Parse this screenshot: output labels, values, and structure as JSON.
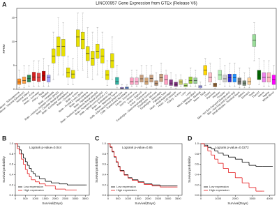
{
  "panels": [
    "A",
    "B",
    "C",
    "D"
  ],
  "chart_data": [
    {
      "type": "box",
      "title": "LINC00957 Gene Expression from GTEx (Release V6)",
      "y_label": "RPKM",
      "ylim": [
        0,
        17
      ],
      "yticks": [
        0,
        5,
        10,
        15
      ],
      "categories": [
        "Adipose - Subcutaneous",
        "Adipose - Visceral (Omentum)",
        "Adrenal Gland",
        "Artery - Aorta",
        "Artery - Coronary",
        "Artery - Tibial",
        "Bladder",
        "Brain - Amygdala",
        "Brain - Anterior cingulate cortex (BA24)",
        "Brain - Caudate (basal ganglia)",
        "Brain - Cerebellar Hemisphere",
        "Brain - Cerebellum",
        "Brain - Cortex",
        "Brain - Frontal Cortex (BA9)",
        "Brain - Hippocampus",
        "Brain - Hypothalamus",
        "Brain - Nucleus accumbens (basal ganglia)",
        "Brain - Putamen (basal ganglia)",
        "Brain - Spinal cord (cervical c-1)",
        "Brain - Substantia nigra",
        "Breast - Mammary Tissue",
        "Cells - EBV-transformed lymphocytes",
        "Cells - Transformed fibroblasts",
        "Cervix - Ectocervix",
        "Cervix - Endocervix",
        "Colon - Sigmoid",
        "Colon - Transverse",
        "Esophagus - Gastroesophageal Junction",
        "Esophagus - Mucosa",
        "Esophagus - Muscularis",
        "Fallopian Tube",
        "Heart - Atrial Appendage",
        "Heart - Left Ventricle",
        "Kidney - Cortex",
        "Liver",
        "Lung",
        "Minor Salivary Gland",
        "Muscle - Skeletal",
        "Nerve - Tibial",
        "Ovary",
        "Pancreas",
        "Pituitary",
        "Prostate",
        "Skin - Not Sun Exposed (Suprapubic)",
        "Skin - Sun Exposed (Lower leg)",
        "Small Intestine - Terminal Ileum",
        "Spleen",
        "Stomach",
        "Testis",
        "Thyroid",
        "Uterus",
        "Vagina",
        "Whole Blood"
      ],
      "colors": [
        "#ff8c1a",
        "#ff9f40",
        "#2e8b57",
        "#d62020",
        "#e04848",
        "#c00000",
        "#a0a0ff",
        "#e8e000",
        "#e8e000",
        "#e8e000",
        "#e8e000",
        "#e8e000",
        "#e8e000",
        "#e8e000",
        "#e8e000",
        "#e8e000",
        "#e8e000",
        "#e8e000",
        "#e8e000",
        "#e8e000",
        "#33b5a5",
        "#9370db",
        "#6495ed",
        "#ff9fc0",
        "#ffb0d0",
        "#c8a080",
        "#d2a679",
        "#c8a080",
        "#b89070",
        "#c8a080",
        "#ff9fc0",
        "#8b3a8b",
        "#7a2a7a",
        "#cccc66",
        "#aadd66",
        "#99cc33",
        "#99cc99",
        "#aaaaff",
        "#ffd700",
        "#ffc0cb",
        "#996633",
        "#b4eeb4",
        "#d0d0d0",
        "#3333cc",
        "#1e90ff",
        "#777777",
        "#778b78",
        "#ffd39b",
        "#99dd99",
        "#006400",
        "#ee82ee",
        "#ffb6c1",
        "#ff00ff"
      ],
      "whisker_low": [
        0.3,
        0.3,
        0.5,
        0.5,
        0.5,
        0.5,
        0.5,
        2,
        3,
        3,
        1,
        1,
        4,
        4,
        2.5,
        2,
        3,
        2.5,
        0.8,
        2,
        0.3,
        0,
        0,
        0.5,
        0.5,
        0.5,
        0.3,
        0.5,
        0.2,
        0.5,
        0.5,
        0.3,
        0.2,
        0.5,
        0.2,
        0.5,
        0.5,
        0.1,
        0.8,
        1,
        0.2,
        1,
        0.5,
        0.5,
        0.5,
        0.3,
        0.3,
        0.3,
        6,
        1,
        0.5,
        0.5,
        0.1
      ],
      "q1": [
        1,
        1.2,
        1.5,
        1.8,
        1.6,
        1.8,
        1.5,
        5.5,
        7,
        7,
        2.5,
        2.3,
        9,
        8.5,
        6,
        5,
        6.5,
        5.5,
        2,
        4.5,
        1,
        0.1,
        0.1,
        1,
        1,
        1.5,
        1,
        1.5,
        0.8,
        1.6,
        1,
        0.8,
        0.6,
        1,
        0.5,
        1.2,
        1.2,
        0.3,
        3,
        1.5,
        0.5,
        2,
        1.5,
        1.5,
        1.5,
        1,
        0.8,
        1,
        9,
        2,
        1.5,
        1.5,
        1
      ],
      "median": [
        1.5,
        1.8,
        2.3,
        2.6,
        2.5,
        2.8,
        2.5,
        7,
        9,
        9,
        3.5,
        3.2,
        11,
        10.5,
        7.5,
        6.5,
        8,
        7,
        3,
        6,
        1.6,
        0.2,
        0.3,
        1.6,
        1.6,
        2.2,
        1.6,
        2.3,
        1.2,
        2.4,
        2,
        1.3,
        1,
        1.5,
        0.8,
        1.8,
        1.8,
        0.5,
        4,
        2.5,
        0.9,
        3,
        2.2,
        2.4,
        2.4,
        1.6,
        1.3,
        1.6,
        10.3,
        3,
        2.5,
        2.5,
        2
      ],
      "q3": [
        2.2,
        2.6,
        3,
        3.6,
        3.4,
        3.8,
        3,
        8.5,
        11,
        10.5,
        4.5,
        4,
        12.5,
        12,
        9,
        8,
        9.5,
        8.5,
        4,
        7.5,
        2.5,
        0.4,
        0.5,
        2.4,
        2.4,
        3,
        2.4,
        3,
        1.8,
        3.2,
        3,
        2,
        1.5,
        2,
        1.2,
        2.6,
        2.4,
        0.8,
        5,
        3.5,
        1.3,
        4,
        3,
        3.2,
        3.2,
        2.4,
        1.8,
        2.4,
        11.5,
        4,
        3.5,
        3.5,
        3
      ],
      "whisker_high": [
        4,
        5,
        5,
        6,
        6,
        6.5,
        5,
        12,
        15,
        14,
        7,
        6.5,
        16,
        16,
        13,
        12,
        13,
        12,
        6,
        11,
        5,
        1,
        1,
        4,
        4,
        5,
        5,
        5,
        3.5,
        5.5,
        4,
        3.5,
        3,
        3,
        2,
        4.5,
        4,
        1.5,
        6.5,
        5.5,
        2.5,
        6.5,
        5,
        5.5,
        5.5,
        4.5,
        3.5,
        4.5,
        14,
        6.5,
        6,
        6,
        5
      ]
    },
    {
      "type": "line",
      "title": "Logrank p-value=0.044",
      "x_label": "Survival(Days)",
      "y_label": "Survival probability",
      "xlim": [
        0,
        3700
      ],
      "xticks": [
        0,
        500,
        1000,
        1500,
        2000,
        2500,
        3000,
        3500
      ],
      "ylim": [
        0,
        1
      ],
      "yticks": [
        {
          "value": 0,
          "label": "0.0"
        },
        0.2,
        0.4,
        0.6,
        0.8,
        {
          "value": 1,
          "label": "1.0"
        }
      ],
      "series": [
        {
          "name": "Low expression",
          "color": "#000000",
          "x": [
            0,
            100,
            200,
            300,
            400,
            500,
            600,
            700,
            800,
            900,
            1000,
            1200,
            1500,
            1800,
            2200,
            2600,
            3000,
            3500
          ],
          "values": [
            1,
            0.95,
            0.88,
            0.8,
            0.72,
            0.65,
            0.58,
            0.52,
            0.46,
            0.42,
            0.37,
            0.32,
            0.27,
            0.24,
            0.22,
            0.2,
            0.2,
            0.2
          ]
        },
        {
          "name": "High expression",
          "color": "#e41a1c",
          "x": [
            0,
            100,
            200,
            300,
            400,
            500,
            600,
            700,
            800,
            1000,
            1200,
            1500,
            2000,
            2500,
            3000
          ],
          "values": [
            1,
            0.9,
            0.8,
            0.7,
            0.6,
            0.5,
            0.42,
            0.36,
            0.3,
            0.26,
            0.22,
            0.18,
            0.12,
            0.1,
            0.1
          ]
        }
      ]
    },
    {
      "type": "line",
      "title": "Logrank p-value=0.85",
      "x_label": "Survival(Days)",
      "y_label": "Survival probability",
      "xlim": [
        0,
        3700
      ],
      "xticks": [
        0,
        500,
        1000,
        1500,
        2000,
        2500,
        3000,
        3500
      ],
      "ylim": [
        0,
        1
      ],
      "yticks": [
        {
          "value": 0,
          "label": "0.0"
        },
        0.2,
        0.4,
        0.6,
        0.8,
        {
          "value": 1,
          "label": "1.0"
        }
      ],
      "series": [
        {
          "name": "Low expression",
          "color": "#000000",
          "x": [
            0,
            100,
            200,
            300,
            400,
            500,
            600,
            800,
            1000,
            1200,
            1500,
            1800,
            2200,
            2600,
            3000,
            3400
          ],
          "values": [
            1,
            0.93,
            0.84,
            0.74,
            0.64,
            0.56,
            0.48,
            0.4,
            0.34,
            0.3,
            0.26,
            0.22,
            0.2,
            0.18,
            0.18,
            0.18
          ]
        },
        {
          "name": "High expression",
          "color": "#e41a1c",
          "x": [
            0,
            100,
            200,
            300,
            400,
            500,
            600,
            800,
            1000,
            1200,
            1500,
            1800,
            2200,
            2600,
            3000,
            3400
          ],
          "values": [
            1,
            0.94,
            0.85,
            0.75,
            0.65,
            0.55,
            0.47,
            0.39,
            0.33,
            0.29,
            0.25,
            0.21,
            0.18,
            0.16,
            0.16,
            0.16
          ]
        }
      ]
    },
    {
      "type": "line",
      "title": "Logrank p-value=0.0272",
      "x_label": "Survival(Days)",
      "y_label": "Survival probability",
      "xlim": [
        0,
        4300
      ],
      "xticks": [
        0,
        1000,
        2000,
        3000,
        4000
      ],
      "ylim": [
        0,
        1
      ],
      "yticks": [
        {
          "value": 0,
          "label": "0.0"
        },
        0.2,
        0.4,
        0.6,
        0.8,
        {
          "value": 1,
          "label": "1.0"
        }
      ],
      "series": [
        {
          "name": "Low expression",
          "color": "#000000",
          "x": [
            0,
            200,
            400,
            600,
            800,
            1000,
            1300,
            1600,
            2000,
            2400,
            2800,
            3200,
            3600,
            4100
          ],
          "values": [
            1,
            0.97,
            0.93,
            0.9,
            0.86,
            0.82,
            0.78,
            0.74,
            0.7,
            0.64,
            0.58,
            0.56,
            0.56,
            0.56
          ]
        },
        {
          "name": "High expression",
          "color": "#e41a1c",
          "x": [
            0,
            200,
            400,
            600,
            800,
            1000,
            1300,
            1600,
            2000,
            2400,
            2800,
            3200,
            3600
          ],
          "values": [
            1,
            0.94,
            0.86,
            0.78,
            0.7,
            0.62,
            0.52,
            0.44,
            0.34,
            0.24,
            0.15,
            0.08,
            0.08
          ]
        }
      ]
    }
  ]
}
